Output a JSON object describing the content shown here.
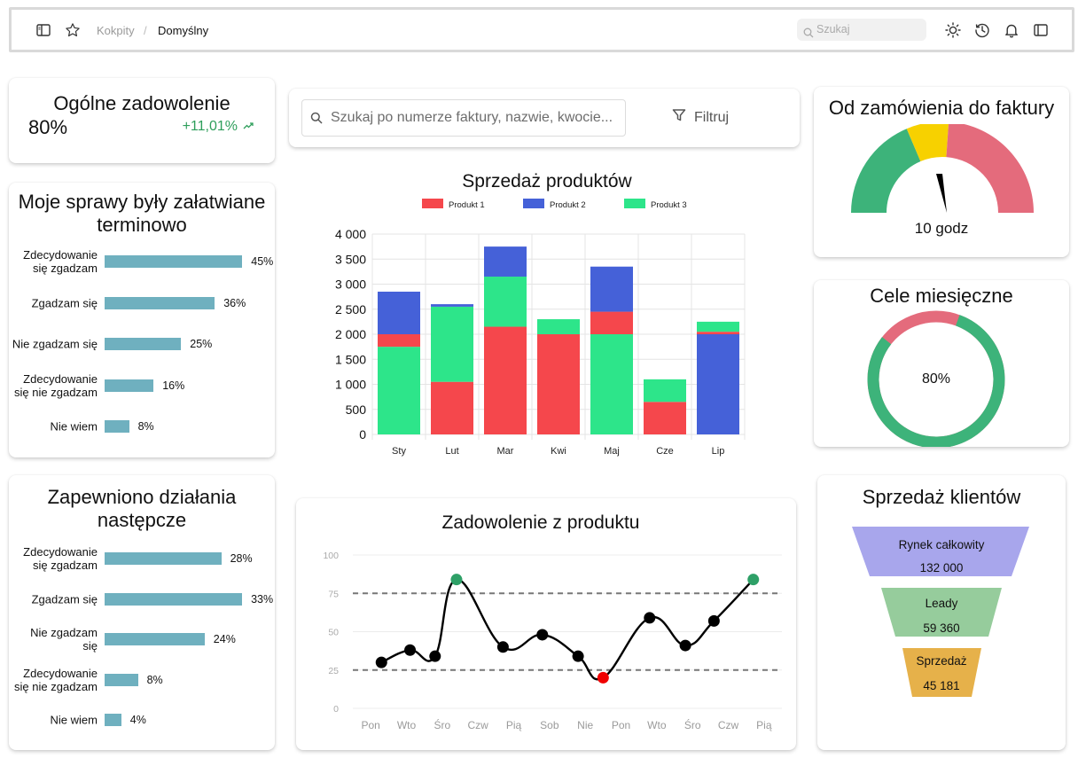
{
  "topbar": {
    "breadcrumb_parent": "Kokpity",
    "breadcrumb_sep": "/",
    "breadcrumb_current": "Domyślny",
    "search_placeholder": "Szukaj"
  },
  "satisfaction": {
    "title": "Ogólne zadowolenie",
    "value": "80%",
    "change": "+11,01%",
    "change_color": "#2e9e5b"
  },
  "survey1": {
    "title_line1": "Moje sprawy były załatwiane",
    "title_line2": "terminowo",
    "items": [
      {
        "label_line1": "Zdecydowanie",
        "label_line2": "się zgadzam",
        "value": "45%",
        "percent": 45
      },
      {
        "label_line1": "Zgadzam się",
        "label_line2": "",
        "value": "36%",
        "percent": 36
      },
      {
        "label_line1": "Nie zgadzam się",
        "label_line2": "",
        "value": "25%",
        "percent": 25
      },
      {
        "label_line1": "Zdecydowanie",
        "label_line2": "się nie zgadzam",
        "value": "16%",
        "percent": 16
      },
      {
        "label_line1": "Nie wiem",
        "label_line2": "",
        "value": "8%",
        "percent": 8
      }
    ]
  },
  "survey2": {
    "title_line1": "Zapewniono działania",
    "title_line2": "następcze",
    "items": [
      {
        "label_line1": "Zdecydowanie",
        "label_line2": "się zgadzam",
        "value": "28%",
        "percent": 28
      },
      {
        "label_line1": "Zgadzam się",
        "label_line2": "",
        "value": "33%",
        "percent": 33
      },
      {
        "label_line1": "Nie zgadzam",
        "label_line2": "się",
        "value": "24%",
        "percent": 24
      },
      {
        "label_line1": "Zdecydowanie",
        "label_line2": "się nie zgadzam",
        "value": "8%",
        "percent": 8
      },
      {
        "label_line1": "Nie wiem",
        "label_line2": "",
        "value": "4%",
        "percent": 4
      }
    ]
  },
  "search": {
    "placeholder": "Szukaj po numerze faktury, nazwie, kwocie...",
    "filter_label": "Filtruj"
  },
  "gauge": {
    "title": "Od zamówienia do faktury",
    "value_label": "10 godz",
    "colors": {
      "green": "#3db37a",
      "yellow": "#f7d100",
      "red": "#e46b7c"
    }
  },
  "goals": {
    "title": "Cele miesięczne",
    "value_label": "80%",
    "percent": 80,
    "colors": {
      "progress": "#3db37a",
      "rest": "#e46b7c"
    }
  },
  "funnel": {
    "title": "Sprzedaż klientów",
    "stages": [
      {
        "label": "Rynek całkowity",
        "value": "132 000",
        "color": "#a8a6ec"
      },
      {
        "label": "Leady",
        "value": "59 360",
        "color": "#96cc9c"
      },
      {
        "label": "Sprzedaż",
        "value": "45 181",
        "color": "#e6b14a"
      }
    ]
  },
  "chart_data": [
    {
      "type": "bar",
      "stacked": true,
      "title": "Sprzedaż produktów",
      "categories": [
        "Sty",
        "Lut",
        "Mar",
        "Kwi",
        "Maj",
        "Cze",
        "Lip"
      ],
      "ylim": [
        0,
        4000
      ],
      "yticks": [
        0,
        500,
        1000,
        1500,
        2000,
        2500,
        3000,
        3500,
        4000
      ],
      "ytick_labels": [
        "0",
        "500",
        "1 000",
        "1 500",
        "2 000",
        "2 500",
        "3 000",
        "3 500",
        "4 000"
      ],
      "legend_position": "top",
      "grid": true,
      "series": [
        {
          "name": "Produkt 1",
          "color": "#f5474c",
          "values": [
            250,
            1050,
            2150,
            2000,
            450,
            650,
            50
          ]
        },
        {
          "name": "Produkt 2",
          "color": "#4561d8",
          "values": [
            850,
            50,
            600,
            0,
            900,
            0,
            2000
          ]
        },
        {
          "name": "Produkt 3",
          "color": "#2de58a",
          "values": [
            1750,
            1500,
            1000,
            300,
            2000,
            450,
            200
          ]
        }
      ],
      "stack_order": [
        [
          "Produkt 3",
          "Produkt 1",
          "Produkt 2"
        ],
        [
          "Produkt 1",
          "Produkt 3",
          "Produkt 2"
        ],
        [
          "Produkt 1",
          "Produkt 3",
          "Produkt 2"
        ],
        [
          "Produkt 1",
          "Produkt 3",
          "Produkt 2"
        ],
        [
          "Produkt 3",
          "Produkt 1",
          "Produkt 2"
        ],
        [
          "Produkt 2",
          "Produkt 1",
          "Produkt 3"
        ],
        [
          "Produkt 2",
          "Produkt 1",
          "Produkt 3"
        ]
      ]
    },
    {
      "type": "line",
      "title": "Zadowolenie z produktu",
      "categories": [
        "Pon",
        "Wto",
        "Śro",
        "Czw",
        "Pią",
        "Sob",
        "Nie",
        "Pon",
        "Wto",
        "Śro",
        "Czw",
        "Pią"
      ],
      "ylim": [
        0,
        100
      ],
      "yticks": [
        0,
        25,
        50,
        75,
        100
      ],
      "grid": true,
      "reference_lines": [
        75,
        25
      ],
      "points": [
        {
          "x": 0.3,
          "y": 30,
          "color": "#000000"
        },
        {
          "x": 1.1,
          "y": 38,
          "color": "#000000"
        },
        {
          "x": 1.8,
          "y": 34,
          "color": "#000000"
        },
        {
          "x": 2.4,
          "y": 84,
          "color": "#2ea067"
        },
        {
          "x": 3.7,
          "y": 40,
          "color": "#000000"
        },
        {
          "x": 4.8,
          "y": 48,
          "color": "#000000"
        },
        {
          "x": 5.8,
          "y": 34,
          "color": "#000000"
        },
        {
          "x": 6.5,
          "y": 20,
          "color": "#f00000"
        },
        {
          "x": 7.8,
          "y": 59,
          "color": "#000000"
        },
        {
          "x": 8.8,
          "y": 41,
          "color": "#000000"
        },
        {
          "x": 9.6,
          "y": 57,
          "color": "#000000"
        },
        {
          "x": 10.7,
          "y": 84,
          "color": "#2ea067"
        }
      ]
    }
  ]
}
